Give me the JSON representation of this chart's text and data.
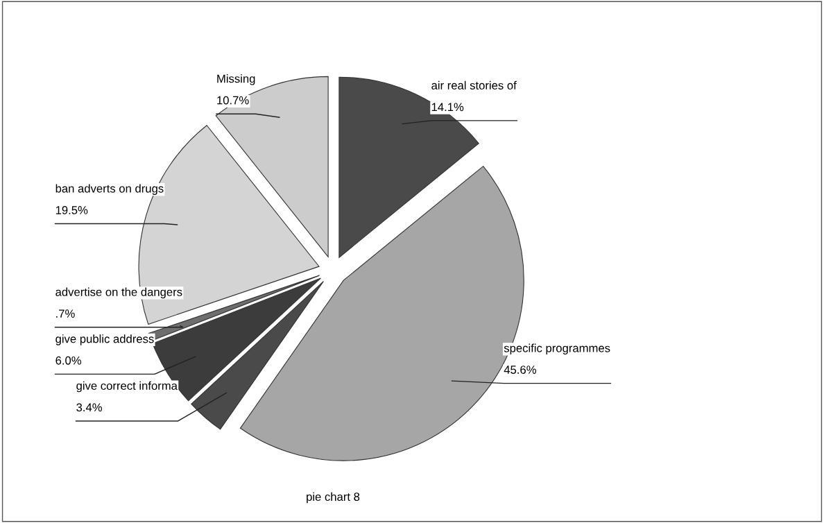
{
  "chart_data": {
    "type": "pie",
    "title": "pie chart 8",
    "categories": [
      "air real stories of",
      "specific programmes",
      "give correct informa",
      "give public address",
      "advertise on the dangers",
      "ban adverts on drugs",
      "Missing"
    ],
    "values": [
      14.1,
      45.6,
      3.4,
      6.0,
      0.7,
      19.5,
      10.7
    ],
    "value_labels": [
      "14.1%",
      "45.6%",
      "3.4%",
      "6.0%",
      ".7%",
      "19.5%",
      "10.7%"
    ],
    "colors": [
      "#4a4a4a",
      "#a6a6a6",
      "#4a4a4a",
      "#3c3c3c",
      "#6e6e6e",
      "#d4d4d4",
      "#cccccc"
    ],
    "legend": false
  }
}
